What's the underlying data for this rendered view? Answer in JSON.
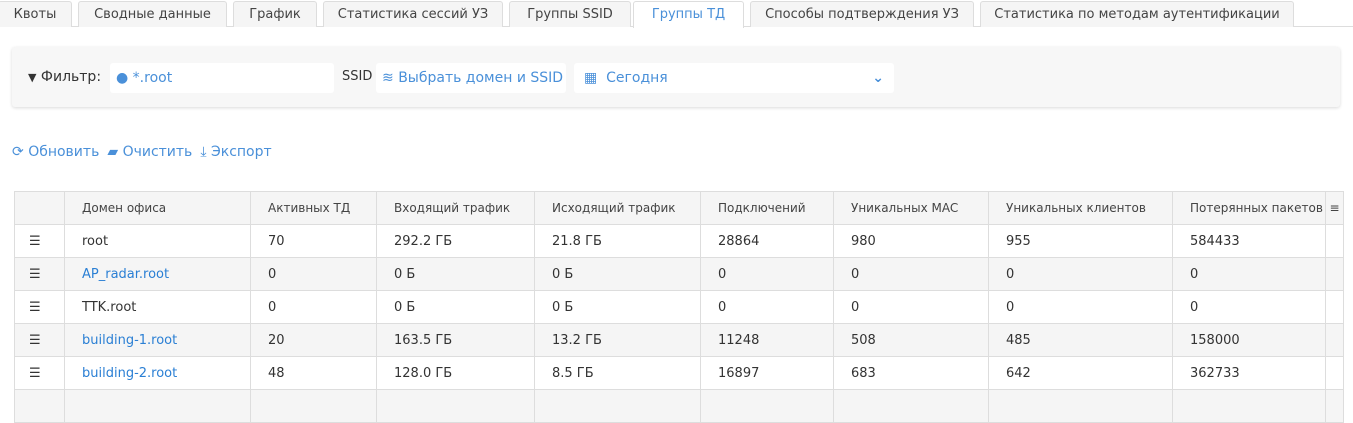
{
  "tabs": [
    "Квоты",
    "Сводные данные",
    "График",
    "Статистика сессий УЗ",
    "Группы SSID",
    "Группы ТД",
    "Способы подтверждения УЗ",
    "Статистика по методам аутентификации"
  ],
  "active_tab": "Группы ТД",
  "filter": {
    "label": "Фильтр:",
    "domain": "*.root",
    "ssid_label": "SSID",
    "ssid_value": "Выбрать домен и SSID",
    "date": "Сегодня"
  },
  "actions": {
    "refresh": "Обновить",
    "clear": "Очистить",
    "export": "Экспорт"
  },
  "table": {
    "headers": [
      "Домен офиса",
      "Активных ТД",
      "Входящий трафик",
      "Исходящий трафик",
      "Подключений",
      "Уникальных MAC",
      "Уникальных клиентов",
      "Потерянных пакетов"
    ],
    "rows": [
      {
        "domain": "root",
        "link": false,
        "cells": [
          "70",
          "292.2 ГБ",
          "21.8 ГБ",
          "28864",
          "980",
          "955",
          "584433"
        ]
      },
      {
        "domain": "AP_radar.root",
        "link": true,
        "cells": [
          "0",
          "0 Б",
          "0 Б",
          "0",
          "0",
          "0",
          "0"
        ]
      },
      {
        "domain": "TTK.root",
        "link": false,
        "cells": [
          "0",
          "0 Б",
          "0 Б",
          "0",
          "0",
          "0",
          "0"
        ]
      },
      {
        "domain": "building-1.root",
        "link": true,
        "cells": [
          "20",
          "163.5 ГБ",
          "13.2 ГБ",
          "11248",
          "508",
          "485",
          "158000"
        ]
      },
      {
        "domain": "building-2.root",
        "link": true,
        "cells": [
          "48",
          "128.0 ГБ",
          "8.5 ГБ",
          "16897",
          "683",
          "642",
          "362733"
        ]
      }
    ]
  },
  "colors": {
    "accent": "#4a90d9",
    "link": "#2a7fd4"
  }
}
